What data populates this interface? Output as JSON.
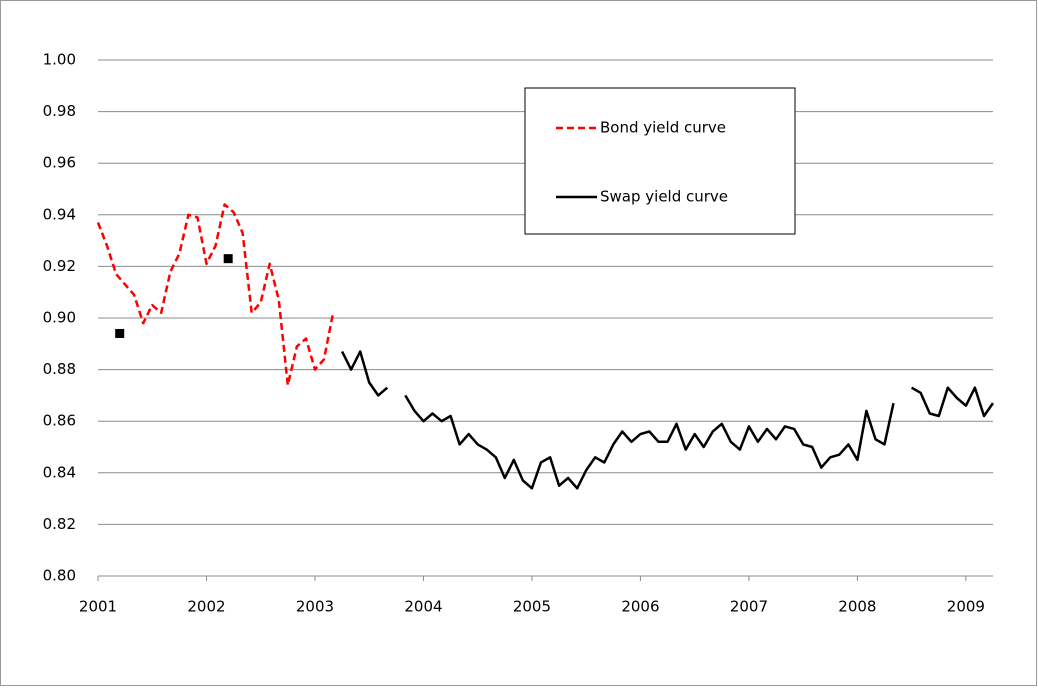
{
  "chart_data": {
    "type": "line",
    "xlim": [
      2001,
      2009.25
    ],
    "xticks": [
      2001,
      2002,
      2003,
      2004,
      2005,
      2006,
      2007,
      2008,
      2009
    ],
    "ylim": [
      0.8,
      1.0
    ],
    "yticks": [
      {
        "value": 0.8,
        "label": "0.80"
      },
      {
        "value": 0.82,
        "label": "0.82"
      },
      {
        "value": 0.84,
        "label": "0.84"
      },
      {
        "value": 0.86,
        "label": "0.86"
      },
      {
        "value": 0.88,
        "label": "0.88"
      },
      {
        "value": 0.9,
        "label": "0.90"
      },
      {
        "value": 0.92,
        "label": "0.92"
      },
      {
        "value": 0.94,
        "label": "0.94"
      },
      {
        "value": 0.96,
        "label": "0.96"
      },
      {
        "value": 0.98,
        "label": "0.98"
      },
      {
        "value": 1.0,
        "label": "1.00"
      }
    ],
    "grid": true,
    "legend": "upper right",
    "series": [
      {
        "name": "Bond yield curve",
        "color": "#ff0000",
        "dashed": true,
        "x": [
          2001,
          2001.083,
          2001.167,
          2001.25,
          2001.333,
          2001.417,
          2001.5,
          2001.583,
          2001.667,
          2001.75,
          2001.833,
          2001.917,
          2002,
          2002.083,
          2002.167,
          2002.25,
          2002.333,
          2002.417,
          2002.5,
          2002.583,
          2002.667,
          2002.75,
          2002.833,
          2002.917,
          2003,
          2003.083,
          2003.167
        ],
        "values": [
          0.937,
          0.928,
          0.917,
          0.913,
          0.909,
          0.898,
          0.905,
          0.902,
          0.918,
          0.925,
          0.94,
          0.939,
          0.921,
          0.928,
          0.944,
          0.941,
          0.933,
          0.902,
          0.906,
          0.921,
          0.907,
          0.874,
          0.889,
          0.892,
          0.88,
          0.884,
          0.902
        ]
      },
      {
        "name": "Swap yield curve",
        "color": "#000000",
        "dashed": false,
        "x": [
          2003.25,
          2003.333,
          2003.417,
          2003.5,
          2003.583,
          2003.667,
          2003.75,
          2003.833,
          2003.917,
          2004,
          2004.083,
          2004.167,
          2004.25,
          2004.333,
          2004.417,
          2004.5,
          2004.583,
          2004.667,
          2004.75,
          2004.833,
          2004.917,
          2005,
          2005.083,
          2005.167,
          2005.25,
          2005.333,
          2005.417,
          2005.5,
          2005.583,
          2005.667,
          2005.75,
          2005.833,
          2005.917,
          2006,
          2006.083,
          2006.167,
          2006.25,
          2006.333,
          2006.417,
          2006.5,
          2006.583,
          2006.667,
          2006.75,
          2006.833,
          2006.917,
          2007,
          2007.083,
          2007.167,
          2007.25,
          2007.333,
          2007.417,
          2007.5,
          2007.583,
          2007.667,
          2007.75,
          2007.833,
          2007.917,
          2008,
          2008.083,
          2008.167,
          2008.25,
          2008.333,
          2008.417,
          2008.5,
          2008.583,
          2008.667,
          2008.75,
          2008.833,
          2008.917,
          2009,
          2009.083,
          2009.167,
          2009.25
        ],
        "values": [
          0.887,
          0.88,
          0.887,
          0.875,
          0.87,
          0.873,
          null,
          0.87,
          0.864,
          0.86,
          0.863,
          0.86,
          0.862,
          0.851,
          0.855,
          0.851,
          0.849,
          0.846,
          0.838,
          0.845,
          0.837,
          0.834,
          0.844,
          0.846,
          0.835,
          0.838,
          0.834,
          0.841,
          0.846,
          0.844,
          0.851,
          0.856,
          0.852,
          0.855,
          0.856,
          0.852,
          0.852,
          0.859,
          0.849,
          0.855,
          0.85,
          0.856,
          0.859,
          0.852,
          0.849,
          0.858,
          0.852,
          0.857,
          0.853,
          0.858,
          0.857,
          0.851,
          0.85,
          0.842,
          0.846,
          0.847,
          0.851,
          0.845,
          0.864,
          0.853,
          0.851,
          0.867,
          null,
          0.873,
          0.871,
          0.863,
          0.862,
          0.873,
          0.869,
          0.866,
          0.873,
          0.862,
          0.867
        ]
      },
      {
        "color": "#000000",
        "marker": "square",
        "x": [
          2001.2,
          2002.2
        ],
        "values": [
          0.894,
          0.923
        ]
      }
    ]
  }
}
